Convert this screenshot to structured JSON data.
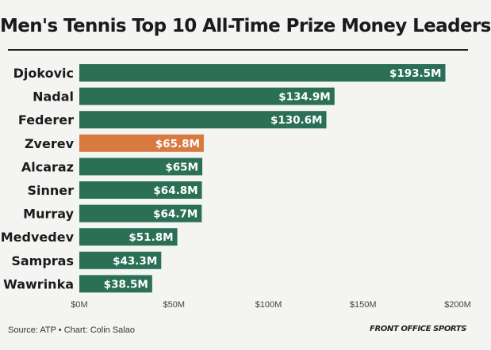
{
  "chart_data": {
    "type": "bar",
    "orientation": "horizontal",
    "title": "Men's Tennis Top 10 All-Time Prize Money Leaders",
    "categories": [
      "Djokovic",
      "Nadal",
      "Federer",
      "Zverev",
      "Alcaraz",
      "Sinner",
      "Murray",
      "Medvedev",
      "Sampras",
      "Wawrinka"
    ],
    "values": [
      193.5,
      134.9,
      130.6,
      65.8,
      65,
      64.8,
      64.7,
      51.8,
      43.3,
      38.5
    ],
    "value_labels": [
      "$193.5M",
      "$134.9M",
      "$130.6M",
      "$65.8M",
      "$65M",
      "$64.8M",
      "$64.7M",
      "$51.8M",
      "$43.3M",
      "$38.5M"
    ],
    "highlight": "Zverev",
    "xlim": [
      0,
      200
    ],
    "xticks": [
      0,
      50,
      100,
      150,
      200
    ],
    "xtick_labels": [
      "$0M",
      "$50M",
      "$100M",
      "$150M",
      "$200M"
    ],
    "xlabel": "",
    "ylabel": "",
    "grid": false,
    "legend": "none",
    "colors": {
      "bar": "#2b7056",
      "highlight": "#d8793f",
      "label_text": "#ffffff",
      "category_text": "#1b1b1b",
      "tick_text": "#444444"
    }
  },
  "footer": {
    "source": "Source: ATP • Chart: Colin Salao",
    "brand": "FRONT OFFICE SPORTS"
  }
}
